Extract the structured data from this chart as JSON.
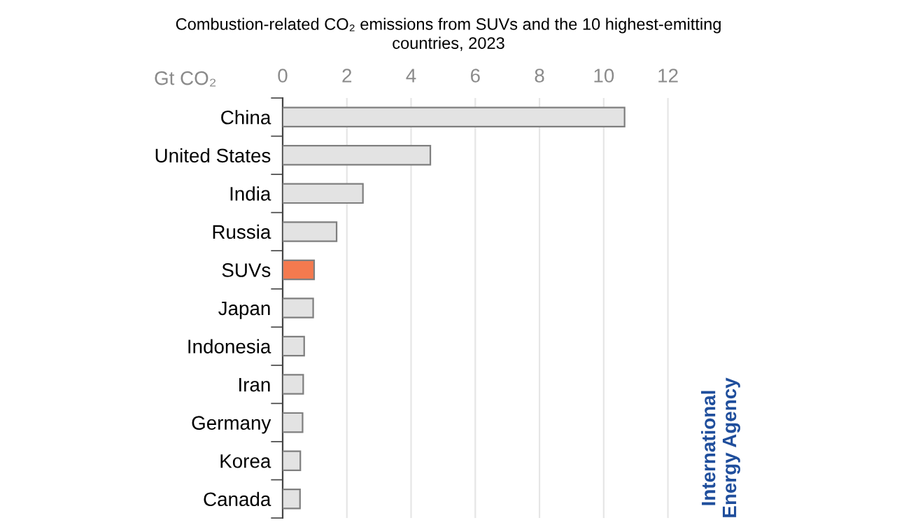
{
  "chart_data": {
    "type": "bar",
    "orientation": "horizontal",
    "title": "Combustion-related CO₂ emissions from SUVs and the 10 highest-emitting\ncountries, 2023",
    "xlabel": "Gt CO₂",
    "categories": [
      "China",
      "United States",
      "India",
      "Russia",
      "SUVs",
      "Japan",
      "Indonesia",
      "Iran",
      "Germany",
      "Korea",
      "Canada"
    ],
    "values": [
      10.65,
      4.6,
      2.5,
      1.68,
      0.98,
      0.95,
      0.67,
      0.64,
      0.62,
      0.55,
      0.54
    ],
    "colors": [
      "#e3e3e3",
      "#e3e3e3",
      "#e3e3e3",
      "#e3e3e3",
      "#f47a4f",
      "#e3e3e3",
      "#e3e3e3",
      "#e3e3e3",
      "#e3e3e3",
      "#e3e3e3",
      "#e3e3e3"
    ],
    "xlim": [
      0,
      12.1
    ],
    "xticks": [
      0,
      2,
      4,
      6,
      8,
      10,
      12
    ],
    "grid": "x",
    "annotations": [
      "International\nEnergy Agency"
    ]
  }
}
